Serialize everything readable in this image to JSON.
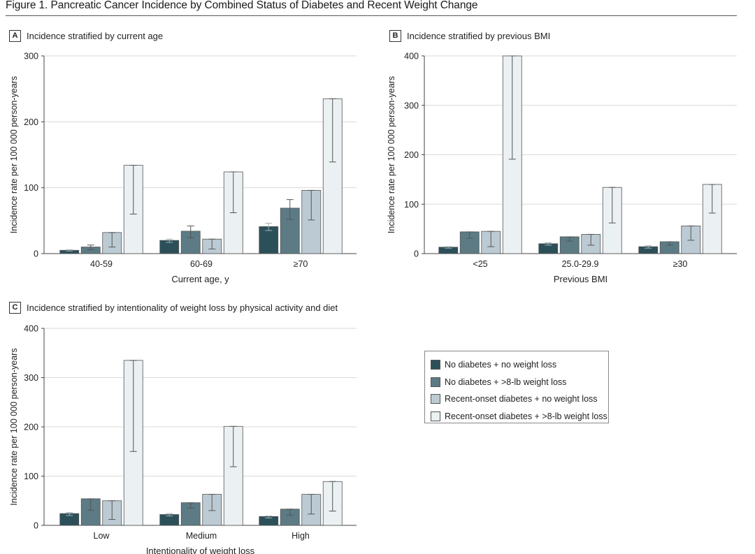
{
  "figure": {
    "title": "Figure 1. Pancreatic Cancer Incidence by Combined Status of Diabetes and Recent Weight Change"
  },
  "series_colors": [
    "#2c5059",
    "#5c7b85",
    "#bccbd3",
    "#ebf0f2"
  ],
  "legend": {
    "items": [
      "No diabetes + no weight loss",
      "No diabetes + >8-lb weight loss",
      "Recent-onset diabetes + no weight loss",
      "Recent-onset diabetes + >8-lb weight loss"
    ]
  },
  "chart_data": [
    {
      "type": "bar",
      "panel_letter": "A",
      "title": "Incidence stratified by current age",
      "xlabel": "Current age, y",
      "ylabel": "Incidence rate per 100 000 person-years",
      "ylim": [
        0,
        300
      ],
      "yticks": [
        0,
        100,
        200,
        300
      ],
      "categories": [
        "40-59",
        "60-69",
        "≥70"
      ],
      "series": [
        {
          "name": "No diabetes + no weight loss",
          "values": [
            5,
            20,
            41
          ],
          "ci": [
            [
              4,
              6
            ],
            [
              17,
              22
            ],
            [
              35,
              46
            ]
          ]
        },
        {
          "name": "No diabetes + >8-lb weight loss",
          "values": [
            10,
            34,
            69
          ],
          "ci": [
            [
              6,
              13
            ],
            [
              24,
              42
            ],
            [
              52,
              82
            ]
          ]
        },
        {
          "name": "Recent-onset diabetes + no weight loss",
          "values": [
            32,
            22,
            96
          ],
          "ci": [
            [
              10,
              32
            ],
            [
              7,
              22
            ],
            [
              51,
              96
            ]
          ]
        },
        {
          "name": "Recent-onset diabetes + >8-lb weight loss",
          "values": [
            134,
            124,
            235
          ],
          "ci": [
            [
              60,
              134
            ],
            [
              62,
              124
            ],
            [
              139,
              235
            ]
          ]
        }
      ]
    },
    {
      "type": "bar",
      "panel_letter": "B",
      "title": "Incidence stratified by previous BMI",
      "xlabel": "Previous BMI",
      "ylabel": "Incidence rate per 100 000 person-years",
      "ylim": [
        0,
        400
      ],
      "yticks": [
        0,
        100,
        200,
        300,
        400
      ],
      "categories": [
        "<25",
        "25.0-29.9",
        "≥30"
      ],
      "series": [
        {
          "name": "No diabetes + no weight loss",
          "values": [
            13,
            20,
            14
          ],
          "ci": [
            [
              11,
              14
            ],
            [
              17,
              22
            ],
            [
              11,
              16
            ]
          ]
        },
        {
          "name": "No diabetes + >8-lb weight loss",
          "values": [
            44,
            34,
            24
          ],
          "ci": [
            [
              31,
              44
            ],
            [
              25,
              34
            ],
            [
              17,
              24
            ]
          ]
        },
        {
          "name": "Recent-onset diabetes + no weight loss",
          "values": [
            45,
            39,
            56
          ],
          "ci": [
            [
              14,
              45
            ],
            [
              17,
              39
            ],
            [
              27,
              56
            ]
          ]
        },
        {
          "name": "Recent-onset diabetes + >8-lb weight loss",
          "values": [
            400,
            134,
            140
          ],
          "ci": [
            [
              191,
              400
            ],
            [
              62,
              134
            ],
            [
              82,
              140
            ]
          ]
        }
      ]
    },
    {
      "type": "bar",
      "panel_letter": "C",
      "title": "Incidence stratified by intentionality  of weight loss by physical activity and diet",
      "xlabel": "Intentionality of weight loss",
      "ylabel": "Incidence rate per 100 000 person-years",
      "ylim": [
        0,
        400
      ],
      "yticks": [
        0,
        100,
        200,
        300,
        400
      ],
      "categories": [
        "Low",
        "Medium",
        "High"
      ],
      "series": [
        {
          "name": "No diabetes + no weight loss",
          "values": [
            24,
            22,
            18
          ],
          "ci": [
            [
              20,
              26
            ],
            [
              19,
              24
            ],
            [
              15,
              19
            ]
          ]
        },
        {
          "name": "No diabetes + >8-lb weight loss",
          "values": [
            54,
            46,
            33
          ],
          "ci": [
            [
              31,
              54
            ],
            [
              35,
              46
            ],
            [
              21,
              33
            ]
          ]
        },
        {
          "name": "Recent-onset diabetes + no weight loss",
          "values": [
            50,
            63,
            63
          ],
          "ci": [
            [
              12,
              50
            ],
            [
              30,
              63
            ],
            [
              23,
              63
            ]
          ]
        },
        {
          "name": "Recent-onset diabetes + >8-lb weight loss",
          "values": [
            335,
            201,
            89
          ],
          "ci": [
            [
              150,
              335
            ],
            [
              119,
              201
            ],
            [
              29,
              89
            ]
          ]
        }
      ]
    }
  ]
}
